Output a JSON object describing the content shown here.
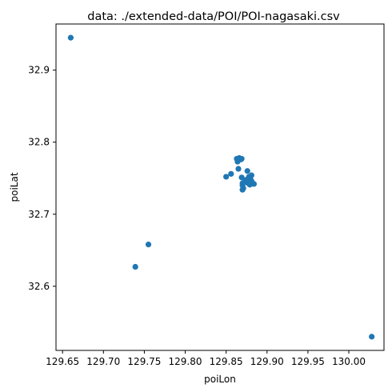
{
  "chart_data": {
    "type": "scatter",
    "title": "data: ./extended-data/POI/POI-nagasaki.csv",
    "xlabel": "poiLon",
    "ylabel": "poiLat",
    "xlim": [
      129.642,
      130.043
    ],
    "ylim": [
      32.511,
      32.964
    ],
    "xticks": [
      129.65,
      129.7,
      129.75,
      129.8,
      129.85,
      129.9,
      129.95,
      130.0
    ],
    "xtick_labels": [
      "129.65",
      "129.70",
      "129.75",
      "129.80",
      "129.85",
      "129.90",
      "129.95",
      "130.00"
    ],
    "yticks": [
      32.6,
      32.7,
      32.8,
      32.9
    ],
    "ytick_labels": [
      "32.6",
      "32.7",
      "32.8",
      "32.9"
    ],
    "grid": false,
    "marker_color": "#1f77b4",
    "points": [
      {
        "x": 129.66,
        "y": 32.945
      },
      {
        "x": 129.755,
        "y": 32.658
      },
      {
        "x": 129.739,
        "y": 32.627
      },
      {
        "x": 130.028,
        "y": 32.53
      },
      {
        "x": 129.85,
        "y": 32.752
      },
      {
        "x": 129.856,
        "y": 32.756
      },
      {
        "x": 129.863,
        "y": 32.777
      },
      {
        "x": 129.866,
        "y": 32.778
      },
      {
        "x": 129.868,
        "y": 32.776
      },
      {
        "x": 129.864,
        "y": 32.773
      },
      {
        "x": 129.869,
        "y": 32.777
      },
      {
        "x": 129.865,
        "y": 32.763
      },
      {
        "x": 129.876,
        "y": 32.76
      },
      {
        "x": 129.881,
        "y": 32.754
      },
      {
        "x": 129.878,
        "y": 32.752
      },
      {
        "x": 129.869,
        "y": 32.751
      },
      {
        "x": 129.875,
        "y": 32.748
      },
      {
        "x": 129.88,
        "y": 32.748
      },
      {
        "x": 129.873,
        "y": 32.745
      },
      {
        "x": 129.877,
        "y": 32.743
      },
      {
        "x": 129.882,
        "y": 32.743
      },
      {
        "x": 129.879,
        "y": 32.741
      },
      {
        "x": 129.884,
        "y": 32.742
      },
      {
        "x": 129.87,
        "y": 32.743
      },
      {
        "x": 129.87,
        "y": 32.74
      },
      {
        "x": 129.871,
        "y": 32.736
      },
      {
        "x": 129.87,
        "y": 32.734
      },
      {
        "x": 129.876,
        "y": 32.744
      },
      {
        "x": 129.881,
        "y": 32.746
      }
    ]
  }
}
